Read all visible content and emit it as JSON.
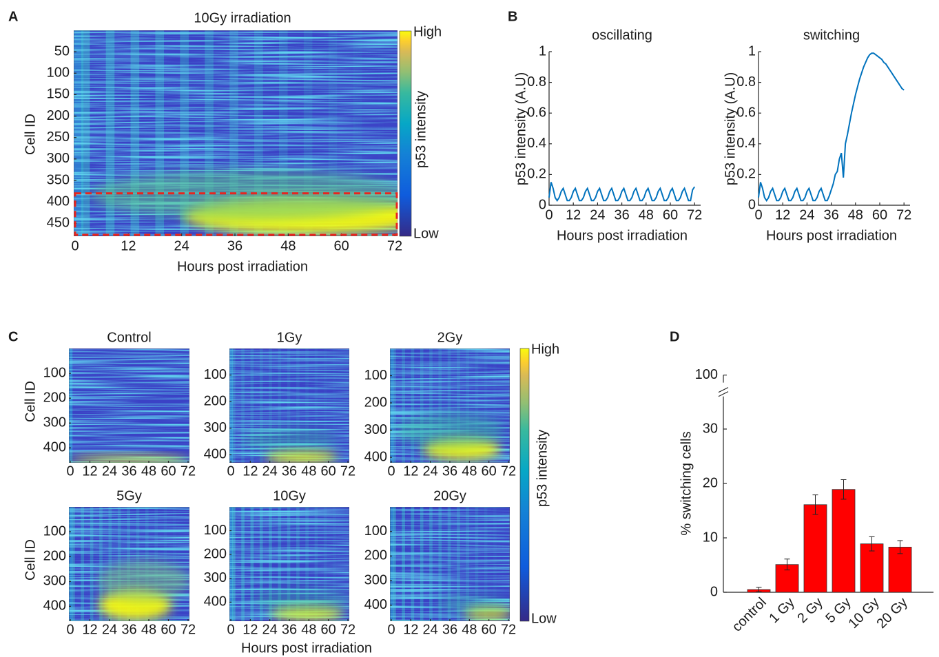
{
  "chart_data": [
    {
      "type": "heatmap",
      "panel_label": "A",
      "title": "10Gy irradiation",
      "xlabel": "Hours post irradiation",
      "ylabel": "Cell ID",
      "xlim": [
        0,
        72
      ],
      "xticks": [
        0,
        12,
        24,
        36,
        48,
        60,
        72
      ],
      "ylim": [
        0,
        480
      ],
      "yticks": [
        50,
        100,
        150,
        200,
        250,
        300,
        350,
        400,
        450
      ],
      "colorbar": {
        "label": "p53 intensity",
        "high": "High",
        "low": "Low"
      },
      "highlight_ylim": [
        380,
        480
      ],
      "highlight_color": "#e8251f"
    },
    {
      "type": "line",
      "panel_label": "B",
      "title": "oscillating",
      "xlabel": "Hours post irradiation",
      "ylabel": "p53 intensity (A.U)",
      "color": "#0072bd",
      "x": [
        0,
        1,
        2,
        3,
        4,
        5,
        6,
        7,
        8,
        9,
        10,
        11,
        12,
        13,
        14,
        15,
        16,
        17,
        18,
        19,
        20,
        21,
        22,
        23,
        24,
        25,
        26,
        27,
        28,
        29,
        30,
        31,
        32,
        33,
        34,
        35,
        36,
        37,
        38,
        39,
        40,
        41,
        42,
        43,
        44,
        45,
        46,
        47,
        48,
        49,
        50,
        51,
        52,
        53,
        54,
        55,
        56,
        57,
        58,
        59,
        60,
        61,
        62,
        63,
        64,
        65,
        66,
        67,
        68,
        69,
        70,
        71,
        72
      ],
      "values": [
        0.05,
        0.15,
        0.11,
        0.05,
        0.03,
        0.05,
        0.09,
        0.11,
        0.07,
        0.03,
        0.03,
        0.05,
        0.09,
        0.11,
        0.07,
        0.03,
        0.03,
        0.05,
        0.09,
        0.11,
        0.07,
        0.03,
        0.03,
        0.05,
        0.09,
        0.11,
        0.07,
        0.03,
        0.03,
        0.05,
        0.09,
        0.11,
        0.07,
        0.03,
        0.03,
        0.05,
        0.09,
        0.11,
        0.07,
        0.03,
        0.03,
        0.05,
        0.09,
        0.11,
        0.07,
        0.03,
        0.03,
        0.05,
        0.09,
        0.11,
        0.07,
        0.03,
        0.03,
        0.05,
        0.09,
        0.11,
        0.07,
        0.03,
        0.03,
        0.05,
        0.09,
        0.11,
        0.07,
        0.03,
        0.03,
        0.05,
        0.09,
        0.11,
        0.07,
        0.03,
        0.03,
        0.1,
        0.12
      ],
      "xlim": [
        0,
        75
      ],
      "xticks": [
        0,
        12,
        24,
        36,
        48,
        60,
        72
      ],
      "ylim": [
        0,
        1
      ],
      "yticks": [
        0,
        0.2,
        0.4,
        0.6,
        0.8,
        1
      ]
    },
    {
      "type": "line",
      "title": "switching",
      "xlabel": "Hours post irradiation",
      "ylabel": "p53 intensity (A.U)",
      "color": "#0072bd",
      "x": [
        0,
        1,
        2,
        3,
        4,
        5,
        6,
        7,
        8,
        9,
        10,
        11,
        12,
        13,
        14,
        15,
        16,
        17,
        18,
        19,
        20,
        21,
        22,
        23,
        24,
        25,
        26,
        27,
        28,
        29,
        30,
        31,
        32,
        33,
        34,
        35,
        36,
        37,
        38,
        39,
        40,
        41,
        42,
        43,
        44,
        45,
        46,
        47,
        48,
        49,
        50,
        51,
        52,
        53,
        54,
        55,
        56,
        57,
        58,
        59,
        60,
        61,
        62,
        63,
        64,
        65,
        66,
        67,
        68,
        69,
        70,
        71,
        72
      ],
      "values": [
        0.05,
        0.15,
        0.11,
        0.05,
        0.03,
        0.05,
        0.09,
        0.11,
        0.07,
        0.03,
        0.03,
        0.05,
        0.09,
        0.11,
        0.07,
        0.03,
        0.03,
        0.05,
        0.09,
        0.11,
        0.07,
        0.03,
        0.03,
        0.05,
        0.09,
        0.11,
        0.07,
        0.03,
        0.03,
        0.05,
        0.09,
        0.11,
        0.07,
        0.03,
        0.03,
        0.06,
        0.1,
        0.14,
        0.2,
        0.22,
        0.3,
        0.34,
        0.18,
        0.4,
        0.46,
        0.53,
        0.6,
        0.66,
        0.72,
        0.77,
        0.82,
        0.86,
        0.9,
        0.93,
        0.96,
        0.98,
        0.99,
        0.99,
        0.98,
        0.97,
        0.96,
        0.95,
        0.93,
        0.92,
        0.9,
        0.88,
        0.86,
        0.84,
        0.82,
        0.8,
        0.78,
        0.76,
        0.75
      ],
      "xlim": [
        0,
        75
      ],
      "xticks": [
        0,
        12,
        24,
        36,
        48,
        60,
        72
      ],
      "ylim": [
        0,
        1
      ],
      "yticks": [
        0,
        0.2,
        0.4,
        0.6,
        0.8,
        1
      ]
    },
    {
      "type": "heatmap_grid",
      "panel_label": "C",
      "xlabel": "Hours post irradiation",
      "ylabel": "Cell ID",
      "colorbar": {
        "label": "p53 intensity",
        "high": "High",
        "low": "Low"
      },
      "panels": [
        {
          "title": "Control",
          "xlim": [
            0,
            72
          ],
          "xticks": [
            0,
            12,
            24,
            36,
            48,
            60,
            72
          ],
          "ylim": [
            0,
            460
          ],
          "yticks": [
            100,
            200,
            300,
            400
          ]
        },
        {
          "title": "1Gy",
          "xlim": [
            0,
            72
          ],
          "xticks": [
            0,
            12,
            24,
            36,
            48,
            60,
            72
          ],
          "ylim": [
            0,
            430
          ],
          "yticks": [
            100,
            200,
            300,
            400
          ]
        },
        {
          "title": "2Gy",
          "xlim": [
            0,
            72
          ],
          "xticks": [
            0,
            12,
            24,
            36,
            48,
            60,
            72
          ],
          "ylim": [
            0,
            420
          ],
          "yticks": [
            100,
            200,
            300,
            400
          ]
        },
        {
          "title": "5Gy",
          "xlim": [
            0,
            72
          ],
          "xticks": [
            0,
            12,
            24,
            36,
            48,
            60,
            72
          ],
          "ylim": [
            0,
            460
          ],
          "yticks": [
            100,
            200,
            300,
            400
          ]
        },
        {
          "title": "10Gy",
          "xlim": [
            0,
            72
          ],
          "xticks": [
            0,
            12,
            24,
            36,
            48,
            60,
            72
          ],
          "ylim": [
            0,
            480
          ],
          "yticks": [
            100,
            200,
            300,
            400
          ]
        },
        {
          "title": "20Gy",
          "xlim": [
            0,
            72
          ],
          "xticks": [
            0,
            12,
            24,
            36,
            48,
            60,
            72
          ],
          "ylim": [
            0,
            465
          ],
          "yticks": [
            100,
            200,
            300,
            400
          ]
        }
      ]
    },
    {
      "type": "bar",
      "panel_label": "D",
      "ylabel": "% switching cells",
      "color": "#ff0000",
      "categories": [
        "control",
        "1 Gy",
        "2 Gy",
        "5 Gy",
        "10 Gy",
        "20 Gy"
      ],
      "values": [
        0.5,
        5.1,
        16.1,
        18.9,
        8.9,
        8.3
      ],
      "errors": [
        0.4,
        1.0,
        1.8,
        1.8,
        1.3,
        1.2
      ],
      "ylim": [
        0,
        100
      ],
      "yticks": [
        0,
        10,
        20,
        30,
        100
      ],
      "axis_break": [
        36,
        96
      ]
    }
  ]
}
